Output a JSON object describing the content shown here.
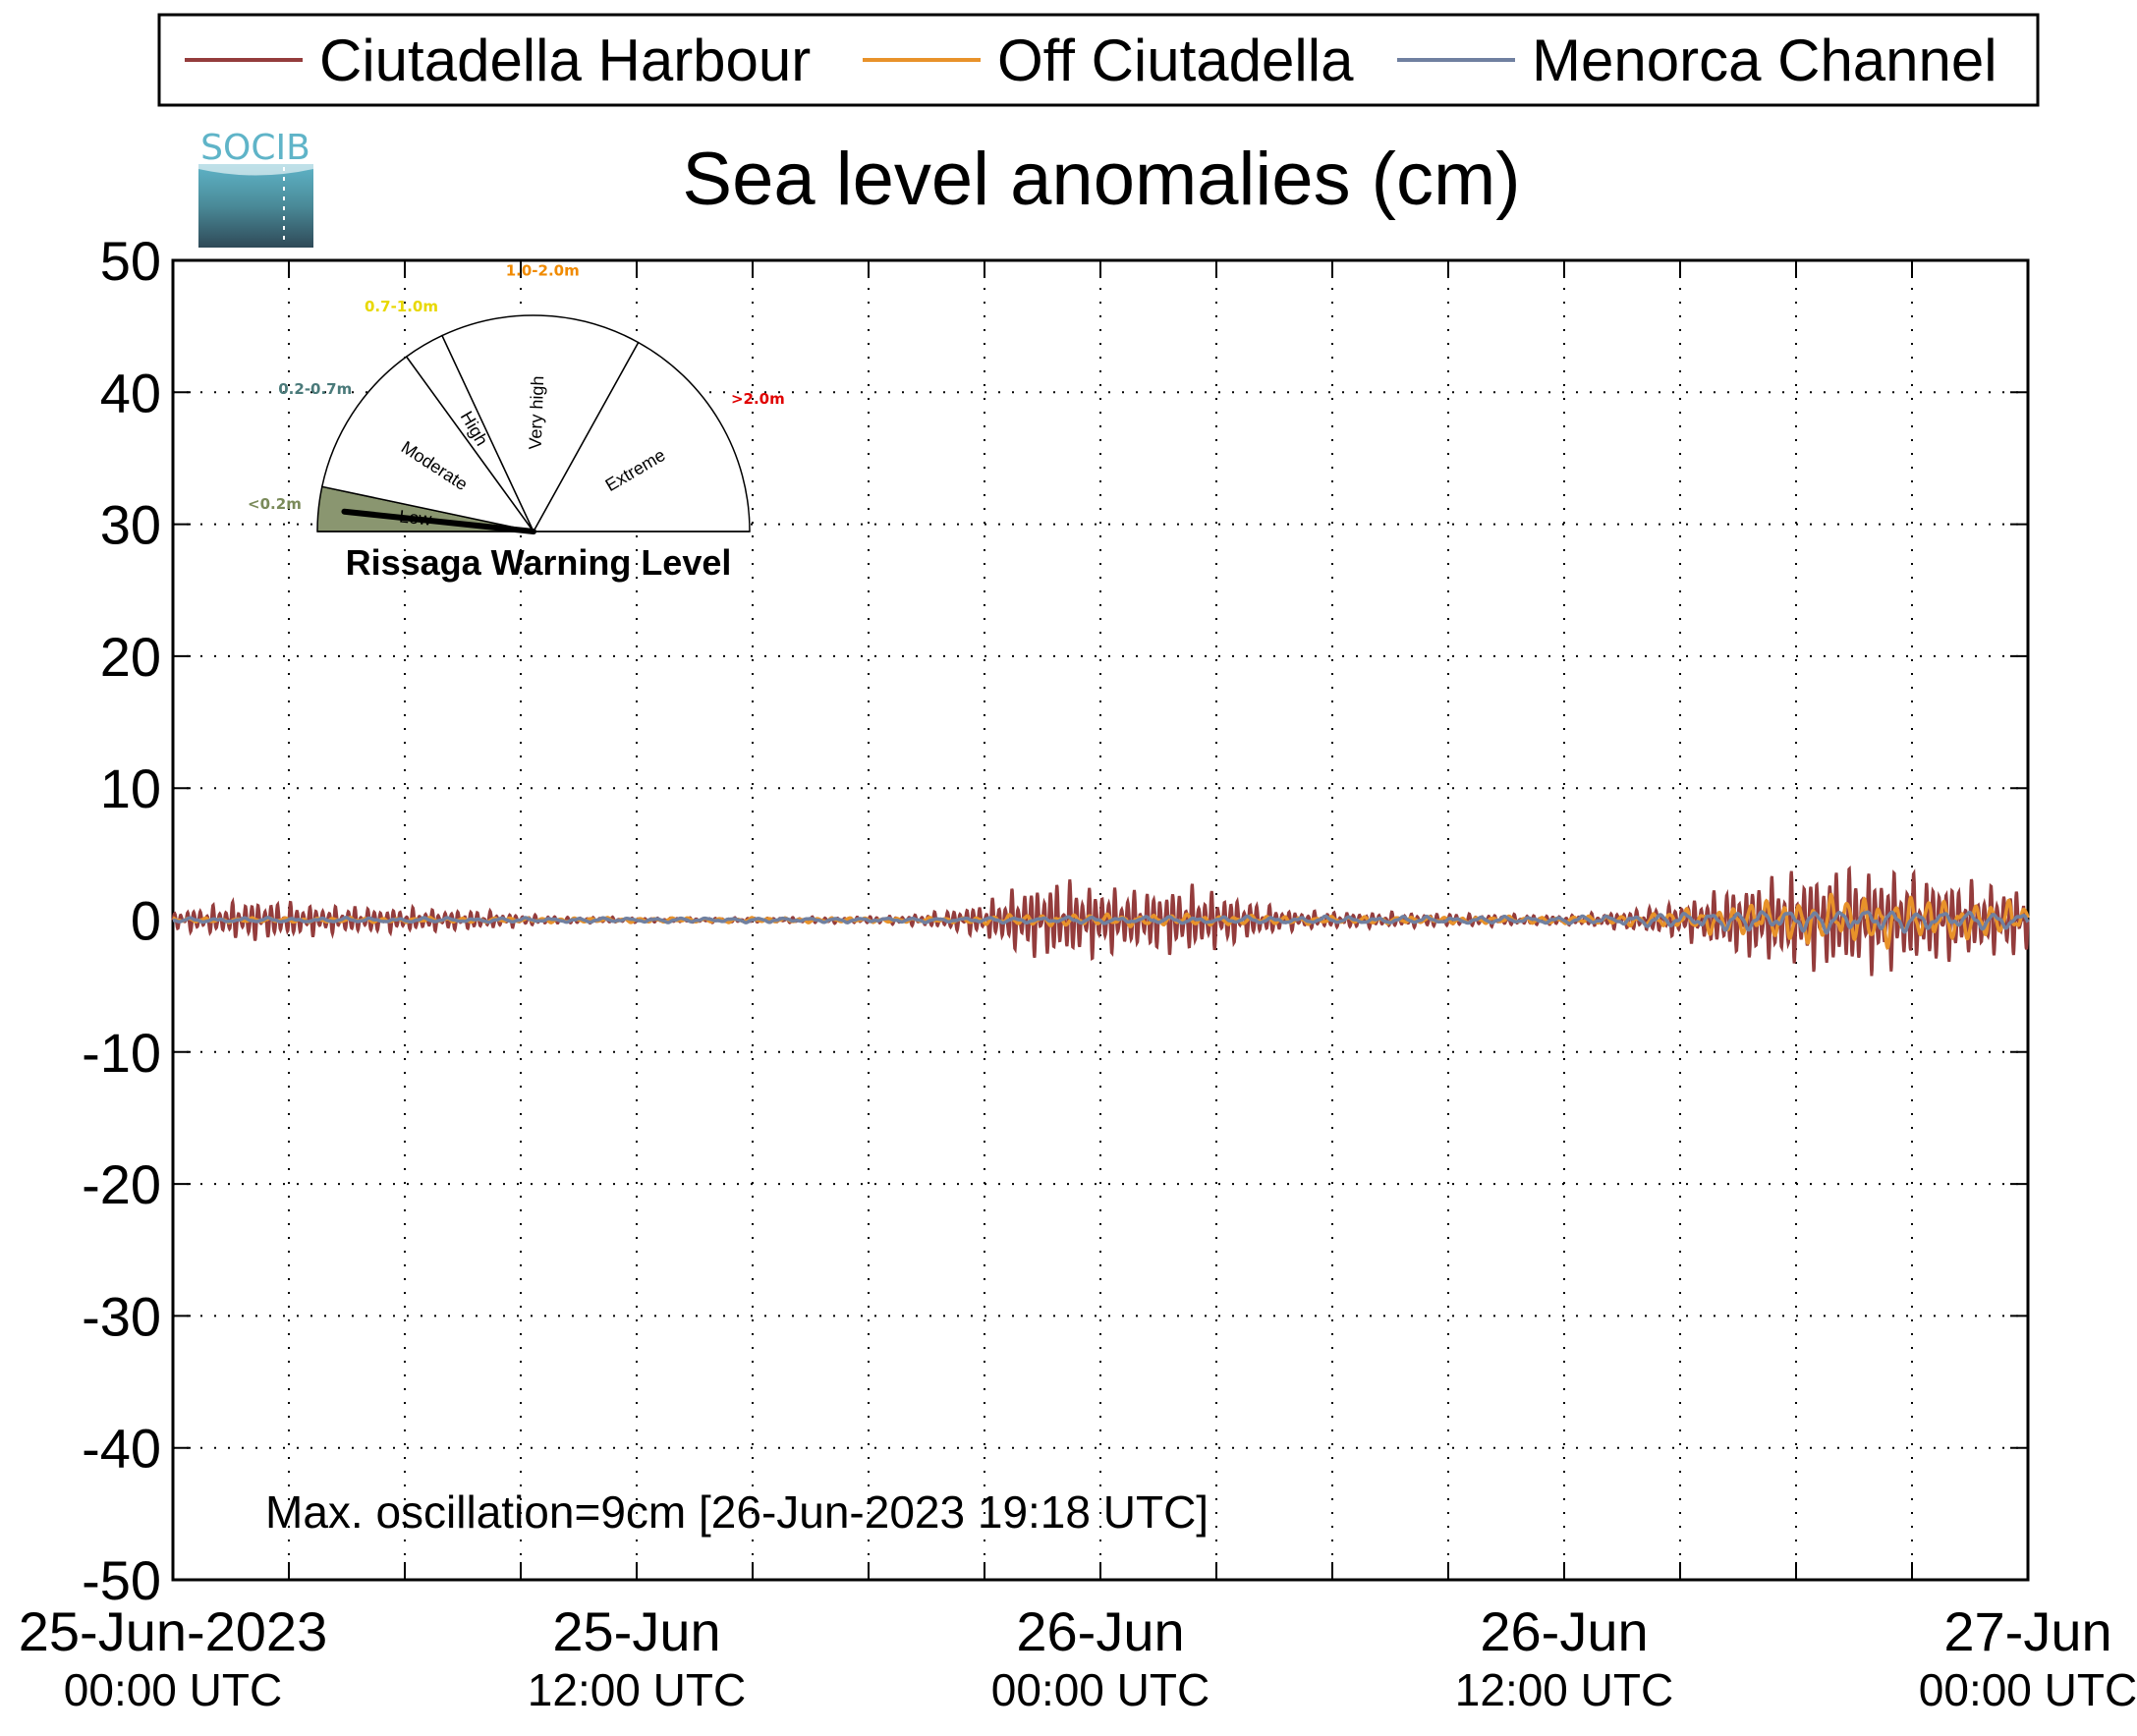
{
  "chart_data": {
    "type": "line",
    "title": "Sea level anomalies (cm)",
    "ylim": [
      -50,
      50
    ],
    "yticks": [
      50,
      40,
      30,
      20,
      10,
      0,
      -10,
      -20,
      -30,
      -40,
      -50
    ],
    "xlim_hours": [
      0,
      48
    ],
    "x_ticks": [
      {
        "hours": 0,
        "line1": "25-Jun-2023",
        "line2": "00:00 UTC"
      },
      {
        "hours": 12,
        "line1": "25-Jun",
        "line2": "12:00 UTC"
      },
      {
        "hours": 24,
        "line1": "26-Jun",
        "line2": "00:00 UTC"
      },
      {
        "hours": 36,
        "line1": "26-Jun",
        "line2": "12:00 UTC"
      },
      {
        "hours": 48,
        "line1": "27-Jun",
        "line2": "00:00 UTC"
      }
    ],
    "minor_tick_hours": [
      3,
      6,
      9,
      15,
      18,
      21,
      27,
      30,
      33,
      39,
      42,
      45
    ],
    "grid": true,
    "legend_position": "top",
    "series": [
      {
        "name": "Ciutadella Harbour",
        "color": "#943c3c",
        "oscillation_period_min": 10,
        "envelope_cm": [
          [
            0,
            0.8
          ],
          [
            1,
            1.2
          ],
          [
            2,
            1.8
          ],
          [
            3,
            1.5
          ],
          [
            4,
            1.2
          ],
          [
            6,
            1.0
          ],
          [
            8,
            0.8
          ],
          [
            9,
            0.5
          ],
          [
            10,
            0.3
          ],
          [
            12,
            0.2
          ],
          [
            15,
            0.2
          ],
          [
            18,
            0.3
          ],
          [
            19,
            0.4
          ],
          [
            20,
            0.8
          ],
          [
            21,
            1.5
          ],
          [
            22,
            3.0
          ],
          [
            23,
            3.5
          ],
          [
            24,
            3.0
          ],
          [
            25,
            2.5
          ],
          [
            26,
            3.0
          ],
          [
            27,
            2.5
          ],
          [
            28,
            1.5
          ],
          [
            29,
            0.8
          ],
          [
            30,
            0.7
          ],
          [
            32,
            0.6
          ],
          [
            34,
            0.5
          ],
          [
            36,
            0.4
          ],
          [
            37,
            0.6
          ],
          [
            38,
            1.0
          ],
          [
            39,
            1.5
          ],
          [
            40,
            2.5
          ],
          [
            41,
            3.5
          ],
          [
            42,
            4.0
          ],
          [
            43,
            4.5
          ],
          [
            44,
            4.5
          ],
          [
            45,
            4.0
          ],
          [
            46,
            3.5
          ],
          [
            47,
            3.0
          ],
          [
            48,
            3.0
          ]
        ]
      },
      {
        "name": "Off Ciutadella",
        "color": "#e8922a",
        "oscillation_period_min": 25,
        "envelope_cm": [
          [
            0,
            0.2
          ],
          [
            20,
            0.2
          ],
          [
            22,
            0.5
          ],
          [
            26,
            0.5
          ],
          [
            30,
            0.3
          ],
          [
            36,
            0.3
          ],
          [
            38,
            0.5
          ],
          [
            40,
            1.2
          ],
          [
            42,
            2.0
          ],
          [
            44,
            2.2
          ],
          [
            46,
            1.8
          ],
          [
            48,
            1.5
          ]
        ]
      },
      {
        "name": "Menorca Channel",
        "color": "#7080a0",
        "oscillation_period_min": 40,
        "envelope_cm": [
          [
            0,
            0.2
          ],
          [
            20,
            0.2
          ],
          [
            24,
            0.3
          ],
          [
            36,
            0.3
          ],
          [
            38,
            0.5
          ],
          [
            40,
            0.8
          ],
          [
            42,
            1.0
          ],
          [
            44,
            1.0
          ],
          [
            46,
            0.8
          ],
          [
            48,
            0.7
          ]
        ]
      }
    ],
    "annotation": "Max. oscillation=9cm [26-Jun-2023 19:18 UTC]",
    "annotation_color": "#943c3c"
  },
  "logo": {
    "text": "SOCIB"
  },
  "gauge": {
    "title": "Rissaga Warning Level",
    "current_level": "Low",
    "sectors": [
      {
        "label": "Low",
        "range": "<0.2m",
        "range_color": "#7a8a5a"
      },
      {
        "label": "Moderate",
        "range": "0.2-0.7m",
        "range_color": "#4a7a7a"
      },
      {
        "label": "High",
        "range": "0.7-1.0m",
        "range_color": "#e8d800"
      },
      {
        "label": "Very high",
        "range": "1.0-2.0m",
        "range_color": "#f08a00"
      },
      {
        "label": "Extreme",
        "range": ">2.0m",
        "range_color": "#e00000"
      }
    ],
    "active_fill": "#8a9670"
  }
}
